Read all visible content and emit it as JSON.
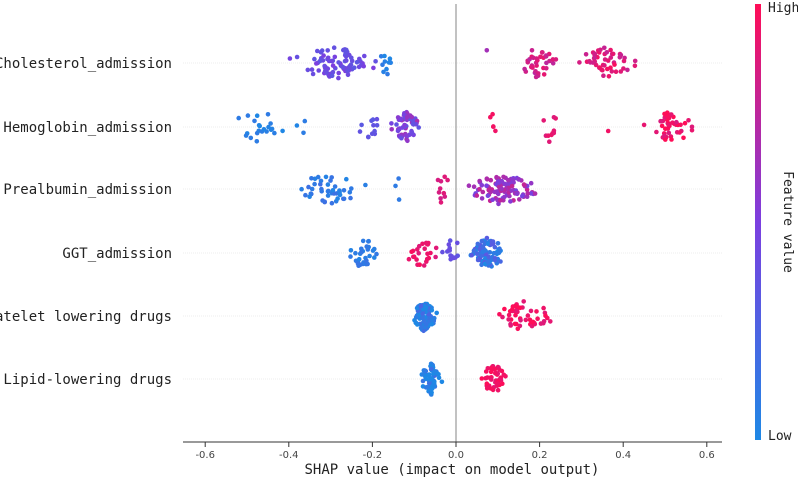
{
  "chart_data": {
    "type": "scatter",
    "subtype": "shap_beeswarm",
    "title": "",
    "xlabel": "SHAP value (impact on model output)",
    "ylabel": "",
    "xlim": [
      -0.65,
      0.62
    ],
    "xticks": [
      -0.6,
      -0.4,
      -0.2,
      0.0,
      0.2,
      0.4,
      0.6
    ],
    "xtick_labels": [
      "-0.6",
      "-0.4",
      "-0.2",
      "0.0",
      "0.2",
      "0.4",
      "0.6"
    ],
    "grid": "horizontal row lines",
    "colorbar": {
      "title": "Feature value",
      "high_label": "High",
      "low_label": "Low",
      "high_color": "#ff0d57",
      "mid_color": "#7b3fe0",
      "low_color": "#1e88e5"
    },
    "features": [
      {
        "name": "Cholesterol_admission",
        "clusters": [
          {
            "range": [
              -0.43,
              -0.15
            ],
            "count": 80,
            "value": 0.42,
            "jitter": 0.09
          },
          {
            "range": [
              -0.2,
              -0.14
            ],
            "count": 10,
            "value": 0.05,
            "jitter": 0.05
          },
          {
            "range": [
              0.07,
              0.08
            ],
            "count": 1,
            "value": 0.65,
            "jitter": 0.0
          },
          {
            "range": [
              0.14,
              0.25
            ],
            "count": 35,
            "value": 0.82,
            "jitter": 0.1
          },
          {
            "range": [
              0.27,
              0.45
            ],
            "count": 50,
            "value": 0.88,
            "jitter": 0.1
          }
        ]
      },
      {
        "name": "Hemoglobin_admission",
        "clusters": [
          {
            "range": [
              -0.6,
              -0.32
            ],
            "count": 25,
            "value": 0.05,
            "jitter": 0.05
          },
          {
            "range": [
              -0.24,
              -0.17
            ],
            "count": 12,
            "value": 0.38,
            "jitter": 0.06
          },
          {
            "range": [
              -0.16,
              -0.08
            ],
            "count": 60,
            "value": 0.5,
            "jitter": 0.18
          },
          {
            "range": [
              0.07,
              0.1
            ],
            "count": 5,
            "value": 0.95,
            "jitter": 0.03
          },
          {
            "range": [
              0.2,
              0.25
            ],
            "count": 10,
            "value": 0.9,
            "jitter": 0.05
          },
          {
            "range": [
              0.36,
              0.37
            ],
            "count": 1,
            "value": 0.95,
            "jitter": 0.0
          },
          {
            "range": [
              0.44,
              0.59
            ],
            "count": 45,
            "value": 0.95,
            "jitter": 0.1
          }
        ]
      },
      {
        "name": "Prealbumin_admission",
        "clusters": [
          {
            "range": [
              -0.41,
              -0.2
            ],
            "count": 45,
            "value": 0.1,
            "jitter": 0.08
          },
          {
            "range": [
              -0.15,
              -0.13
            ],
            "count": 3,
            "value": 0.1,
            "jitter": 0.02
          },
          {
            "range": [
              -0.06,
              0.0
            ],
            "count": 10,
            "value": 0.85,
            "jitter": 0.04
          },
          {
            "range": [
              0.0,
              0.22
            ],
            "count": 110,
            "value": 0.62,
            "jitter": 0.16
          }
        ]
      },
      {
        "name": "GGT_admission",
        "clusters": [
          {
            "range": [
              -0.28,
              -0.17
            ],
            "count": 30,
            "value": 0.08,
            "jitter": 0.06
          },
          {
            "range": [
              -0.13,
              -0.04
            ],
            "count": 25,
            "value": 0.92,
            "jitter": 0.06
          },
          {
            "range": [
              -0.04,
              0.02
            ],
            "count": 15,
            "value": 0.4,
            "jitter": 0.05
          },
          {
            "range": [
              0.02,
              0.13
            ],
            "count": 90,
            "value": 0.15,
            "jitter": 0.19
          }
        ]
      },
      {
        "name": "Platelet lowering drugs",
        "clusters": [
          {
            "range": [
              -0.11,
              -0.04
            ],
            "count": 110,
            "value": 0.05,
            "jitter": 0.2
          },
          {
            "range": [
              0.09,
              0.24
            ],
            "count": 50,
            "value": 0.95,
            "jitter": 0.08
          }
        ]
      },
      {
        "name": "Lipid-lowering drugs",
        "clusters": [
          {
            "range": [
              -0.09,
              -0.03
            ],
            "count": 55,
            "value": 0.05,
            "jitter": 0.15
          },
          {
            "range": [
              0.05,
              0.13
            ],
            "count": 45,
            "value": 0.95,
            "jitter": 0.06
          }
        ]
      }
    ]
  }
}
